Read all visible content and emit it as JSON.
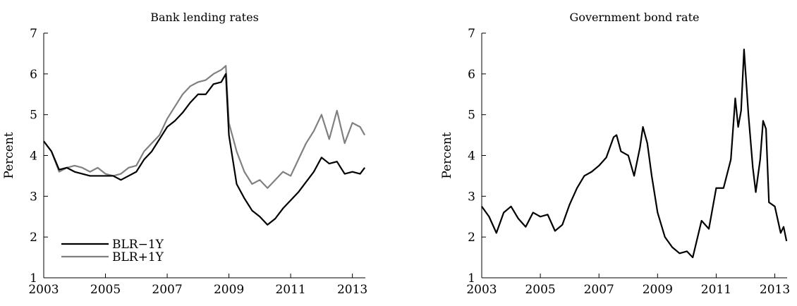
{
  "chart_data": [
    {
      "type": "line",
      "title": "Bank lending rates",
      "y_label": "Percent",
      "x": [
        2003,
        2003.25,
        2003.5,
        2003.75,
        2004,
        2004.25,
        2004.5,
        2004.75,
        2005,
        2005.25,
        2005.5,
        2005.75,
        2006,
        2006.25,
        2006.5,
        2006.75,
        2007,
        2007.25,
        2007.5,
        2007.75,
        2008,
        2008.25,
        2008.5,
        2008.75,
        2008.9,
        2009,
        2009.25,
        2009.5,
        2009.75,
        2010,
        2010.25,
        2010.5,
        2010.75,
        2011,
        2011.25,
        2011.5,
        2011.75,
        2012,
        2012.25,
        2012.5,
        2012.75,
        2013,
        2013.25,
        2013.4
      ],
      "series": [
        {
          "name": "BLR−1Y",
          "color": "#000000",
          "values": [
            4.35,
            4.1,
            3.65,
            3.7,
            3.6,
            3.55,
            3.5,
            3.5,
            3.5,
            3.5,
            3.4,
            3.5,
            3.6,
            3.9,
            4.1,
            4.4,
            4.7,
            4.85,
            5.05,
            5.3,
            5.5,
            5.5,
            5.75,
            5.8,
            6.0,
            4.5,
            3.3,
            2.95,
            2.65,
            2.5,
            2.3,
            2.45,
            2.7,
            2.9,
            3.1,
            3.35,
            3.6,
            3.95,
            3.8,
            3.85,
            3.55,
            3.6,
            3.55,
            3.7
          ]
        },
        {
          "name": "BLR+1Y",
          "color": "#808080",
          "values": [
            4.35,
            4.1,
            3.6,
            3.7,
            3.75,
            3.7,
            3.6,
            3.7,
            3.55,
            3.5,
            3.55,
            3.7,
            3.75,
            4.1,
            4.3,
            4.5,
            4.9,
            5.2,
            5.5,
            5.7,
            5.8,
            5.85,
            6.0,
            6.1,
            6.2,
            4.8,
            4.1,
            3.6,
            3.3,
            3.4,
            3.2,
            3.4,
            3.6,
            3.5,
            3.9,
            4.3,
            4.6,
            5.0,
            4.4,
            5.1,
            4.3,
            4.8,
            4.7,
            4.5
          ]
        }
      ],
      "xlim": [
        2003,
        2013.42
      ],
      "xticks": [
        2003,
        2005,
        2007,
        2009,
        2011,
        2013
      ],
      "ylim": [
        1,
        7
      ],
      "yticks": [
        1,
        2,
        3,
        4,
        5,
        6,
        7
      ],
      "legend": "lower left"
    },
    {
      "type": "line",
      "title": "Government bond rate",
      "y_label": "Percent",
      "x": [
        2003,
        2003.25,
        2003.5,
        2003.75,
        2004,
        2004.25,
        2004.5,
        2004.75,
        2005,
        2005.25,
        2005.5,
        2005.75,
        2006,
        2006.25,
        2006.5,
        2006.75,
        2007,
        2007.25,
        2007.5,
        2007.6,
        2007.75,
        2008,
        2008.2,
        2008.4,
        2008.5,
        2008.65,
        2008.8,
        2009,
        2009.25,
        2009.5,
        2009.75,
        2010,
        2010.2,
        2010.5,
        2010.75,
        2011,
        2011.25,
        2011.5,
        2011.65,
        2011.75,
        2011.85,
        2011.95,
        2012.1,
        2012.25,
        2012.35,
        2012.5,
        2012.6,
        2012.7,
        2012.8,
        2013,
        2013.2,
        2013.3,
        2013.4
      ],
      "series": [
        {
          "color": "#000000",
          "values": [
            2.75,
            2.5,
            2.1,
            2.6,
            2.75,
            2.45,
            2.25,
            2.6,
            2.5,
            2.55,
            2.15,
            2.3,
            2.8,
            3.2,
            3.5,
            3.6,
            3.75,
            3.95,
            4.45,
            4.5,
            4.1,
            4.0,
            3.5,
            4.2,
            4.7,
            4.3,
            3.5,
            2.6,
            2.0,
            1.75,
            1.6,
            1.65,
            1.5,
            2.4,
            2.2,
            3.2,
            3.2,
            3.9,
            5.4,
            4.7,
            5.1,
            6.6,
            5.0,
            3.7,
            3.1,
            3.9,
            4.85,
            4.65,
            2.85,
            2.75,
            2.1,
            2.25,
            1.9
          ]
        }
      ],
      "xlim": [
        2003,
        2013.42
      ],
      "xticks": [
        2003,
        2005,
        2007,
        2009,
        2011,
        2013
      ],
      "ylim": [
        1,
        7
      ],
      "yticks": [
        1,
        2,
        3,
        4,
        5,
        6,
        7
      ]
    }
  ]
}
